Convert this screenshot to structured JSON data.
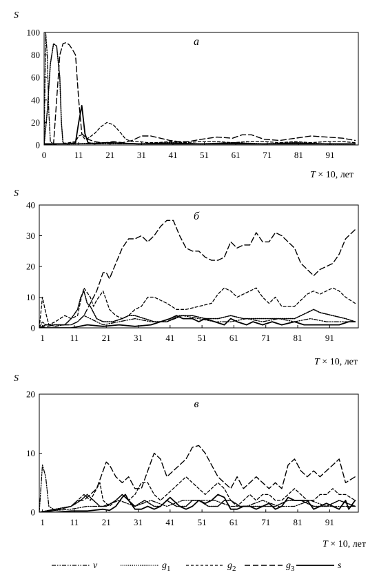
{
  "figure": {
    "legend": [
      {
        "key": "v",
        "label": "v",
        "sub": "",
        "dash": "6,2,1.5,2,1.5,2",
        "width": 1.3
      },
      {
        "key": "g1",
        "label": "g",
        "sub": "1",
        "dash": "1.2,1.6",
        "width": 1.6
      },
      {
        "key": "g2",
        "label": "g",
        "sub": "2",
        "dash": "4,3",
        "width": 1.3
      },
      {
        "key": "g3",
        "label": "g",
        "sub": "3",
        "dash": "8,4",
        "width": 1.4
      },
      {
        "key": "s",
        "label": "s",
        "sub": "",
        "dash": "",
        "width": 1.8
      }
    ]
  },
  "chart_data": [
    {
      "type": "line",
      "panel_label": "а",
      "ylabel": "S",
      "xlabel": "T × 10, лет",
      "xlim": [
        0,
        100
      ],
      "ylim": [
        0,
        100
      ],
      "yticks": [
        0,
        20,
        40,
        60,
        80,
        100
      ],
      "xticks": [
        0,
        11,
        21,
        31,
        41,
        51,
        61,
        71,
        81,
        91
      ],
      "series": [
        {
          "key": "v",
          "x": [
            0,
            0.5,
            1,
            1.5,
            2,
            3,
            5,
            10,
            20,
            40,
            60,
            80,
            99
          ],
          "y": [
            0,
            100,
            80,
            30,
            3,
            1,
            1,
            1,
            1,
            1,
            1,
            1,
            1
          ]
        },
        {
          "key": "g1",
          "x": [
            0,
            1,
            2,
            3,
            4,
            5,
            5.5,
            6,
            7,
            10,
            20,
            30,
            40,
            50,
            60,
            70,
            80,
            90,
            99
          ],
          "y": [
            0,
            30,
            72,
            90,
            88,
            60,
            20,
            2,
            1,
            1,
            2,
            1,
            2,
            1,
            2,
            1,
            2,
            1,
            1
          ]
        },
        {
          "key": "g2",
          "x": [
            0,
            5,
            8,
            10,
            11,
            12,
            13,
            14,
            16,
            18,
            20,
            22,
            24,
            26,
            28,
            30,
            33,
            36,
            40,
            45,
            50,
            55,
            60,
            65,
            70,
            75,
            80,
            85,
            90,
            95,
            99
          ],
          "y": [
            0,
            1,
            2,
            3,
            8,
            9,
            5,
            6,
            10,
            16,
            20,
            18,
            12,
            5,
            3,
            3,
            2,
            2,
            3,
            2,
            3,
            3,
            2,
            3,
            3,
            2,
            3,
            2,
            3,
            3,
            2
          ]
        },
        {
          "key": "g3",
          "x": [
            0,
            3,
            4,
            5,
            6,
            7,
            8,
            9,
            10,
            11,
            12,
            14,
            16,
            18,
            20,
            22,
            25,
            28,
            31,
            34,
            37,
            40,
            43,
            46,
            50,
            55,
            60,
            63,
            66,
            70,
            75,
            80,
            85,
            90,
            95,
            99
          ],
          "y": [
            0,
            1,
            40,
            80,
            90,
            91,
            89,
            85,
            80,
            40,
            10,
            5,
            3,
            2,
            2,
            3,
            2,
            4,
            8,
            8,
            6,
            4,
            3,
            3,
            5,
            7,
            6,
            9,
            9,
            5,
            4,
            6,
            8,
            7,
            6,
            4
          ]
        },
        {
          "key": "s",
          "x": [
            0,
            8,
            10,
            11,
            12,
            13,
            14,
            16,
            20,
            30,
            40,
            50,
            60,
            70,
            80,
            90,
            99
          ],
          "y": [
            1,
            1,
            2,
            20,
            35,
            10,
            2,
            1,
            2,
            1,
            1,
            1,
            1,
            1,
            1,
            1,
            1
          ]
        }
      ]
    },
    {
      "type": "line",
      "panel_label": "б",
      "ylabel": "S",
      "xlabel": "T × 10, лет",
      "xlim": [
        0,
        100
      ],
      "ylim": [
        0,
        40
      ],
      "yticks": [
        0,
        10,
        20,
        30,
        40
      ],
      "xticks": [
        1,
        11,
        21,
        31,
        41,
        51,
        61,
        71,
        81,
        91
      ],
      "series": [
        {
          "key": "v",
          "x": [
            0,
            1,
            2,
            3,
            5,
            8,
            10,
            12,
            14,
            16,
            18,
            20,
            25,
            30,
            35,
            40,
            45,
            50,
            55,
            60,
            65,
            70,
            75,
            80,
            85,
            90,
            95,
            99
          ],
          "y": [
            0,
            2,
            1,
            1,
            0.5,
            1,
            1,
            2,
            4,
            3,
            2,
            1,
            2,
            3,
            2,
            2,
            4,
            3,
            2,
            2,
            3,
            2,
            3,
            2,
            3,
            2,
            2,
            2
          ]
        },
        {
          "key": "g1",
          "x": [
            0,
            2,
            5,
            8,
            10,
            12,
            13,
            14,
            15,
            16,
            18,
            20,
            23,
            26,
            28,
            30,
            33,
            36,
            40,
            44,
            48,
            52,
            56,
            60,
            64,
            68,
            72,
            76,
            80,
            84,
            86,
            88,
            92,
            96,
            99
          ],
          "y": [
            0,
            1,
            1,
            1,
            3,
            6,
            10,
            12,
            8,
            7,
            3,
            2,
            2,
            3,
            4,
            4,
            3,
            2,
            2,
            4,
            4,
            3,
            3,
            4,
            3,
            3,
            3,
            3,
            3,
            5,
            6,
            5,
            4,
            3,
            2
          ]
        },
        {
          "key": "g2",
          "x": [
            0,
            1,
            2,
            3,
            5,
            8,
            10,
            12,
            13,
            14,
            16,
            17,
            18,
            20,
            22,
            24,
            26,
            28,
            30,
            32,
            34,
            36,
            38,
            40,
            43,
            46,
            50,
            54,
            56,
            58,
            60,
            62,
            64,
            66,
            68,
            70,
            72,
            74,
            76,
            78,
            80,
            82,
            84,
            86,
            88,
            90,
            92,
            94,
            96,
            99
          ],
          "y": [
            0,
            10,
            5,
            1,
            2,
            4,
            3,
            4,
            9,
            13,
            10,
            7,
            9,
            12,
            6,
            4,
            3,
            4,
            6,
            7,
            10,
            10,
            9,
            8,
            6,
            6,
            7,
            8,
            11,
            13,
            12,
            10,
            11,
            12,
            13,
            10,
            8,
            10,
            7,
            7,
            7,
            9,
            11,
            12,
            11,
            12,
            13,
            12,
            10,
            8
          ]
        },
        {
          "key": "g3",
          "x": [
            0,
            5,
            10,
            12,
            14,
            16,
            18,
            19,
            20,
            21,
            22,
            24,
            26,
            28,
            30,
            32,
            34,
            36,
            38,
            40,
            42,
            44,
            46,
            48,
            50,
            52,
            54,
            56,
            58,
            60,
            62,
            64,
            66,
            68,
            70,
            72,
            74,
            76,
            78,
            80,
            82,
            84,
            86,
            88,
            90,
            92,
            94,
            96,
            99
          ],
          "y": [
            0,
            1,
            1,
            2,
            4,
            8,
            12,
            15,
            18,
            18,
            16,
            21,
            26,
            29,
            29,
            30,
            28,
            30,
            33,
            35,
            35,
            30,
            26,
            25,
            25,
            23,
            22,
            22,
            23,
            28,
            26,
            27,
            27,
            31,
            28,
            28,
            31,
            30,
            28,
            26,
            21,
            19,
            17,
            19,
            20,
            21,
            24,
            29,
            32
          ]
        },
        {
          "key": "s",
          "x": [
            0,
            5,
            10,
            15,
            20,
            25,
            30,
            35,
            38,
            41,
            43,
            45,
            48,
            50,
            52,
            55,
            58,
            60,
            62,
            65,
            67,
            70,
            73,
            76,
            80,
            83,
            86,
            90,
            94,
            97,
            99
          ],
          "y": [
            0,
            0,
            0,
            1,
            0.5,
            1,
            0.5,
            1,
            2,
            3,
            4,
            3,
            3,
            2,
            3,
            2,
            1,
            3,
            2,
            1,
            2,
            1,
            2,
            1,
            2,
            1,
            1,
            1,
            1,
            2,
            2
          ]
        }
      ]
    },
    {
      "type": "line",
      "panel_label": "в",
      "ylabel": "S",
      "xlabel": "T × 10, лет",
      "xlim": [
        0,
        100
      ],
      "ylim": [
        0,
        20
      ],
      "yticks": [
        0,
        10,
        20
      ],
      "xticks": [
        1,
        11,
        21,
        31,
        41,
        51,
        61,
        71,
        81,
        91
      ],
      "series": [
        {
          "key": "v",
          "x": [
            0,
            1,
            2,
            3,
            5,
            10,
            15,
            20,
            25,
            30,
            35,
            40,
            45,
            50,
            55,
            60,
            65,
            70,
            75,
            80,
            85,
            90,
            95,
            99
          ],
          "y": [
            0,
            8,
            6,
            1,
            0.3,
            0.5,
            1,
            1,
            2,
            1,
            2,
            1,
            2,
            2,
            2,
            1,
            1,
            2,
            1,
            1,
            2,
            1,
            1,
            1
          ]
        },
        {
          "key": "g1",
          "x": [
            0,
            5,
            10,
            13,
            15,
            17,
            19,
            21,
            24,
            26,
            28,
            30,
            33,
            36,
            38,
            40,
            43,
            46,
            48,
            50,
            53,
            56,
            58,
            60,
            63,
            66,
            70,
            74,
            78,
            82,
            86,
            90,
            94,
            99
          ],
          "y": [
            0,
            0.5,
            1,
            2,
            3,
            2,
            1,
            1,
            2,
            3,
            2,
            1,
            2,
            1,
            1,
            2,
            1,
            1,
            2,
            2,
            1,
            1,
            2,
            2,
            1,
            1,
            1,
            1,
            2,
            2,
            1,
            1,
            2,
            1
          ]
        },
        {
          "key": "g2",
          "x": [
            0,
            5,
            10,
            12,
            14,
            16,
            18,
            19,
            20,
            22,
            24,
            26,
            28,
            30,
            32,
            34,
            36,
            38,
            40,
            42,
            44,
            46,
            48,
            50,
            52,
            54,
            56,
            58,
            60,
            62,
            64,
            66,
            68,
            70,
            72,
            74,
            76,
            78,
            80,
            82,
            84,
            86,
            88,
            90,
            92,
            94,
            96,
            99
          ],
          "y": [
            0,
            0.3,
            1,
            2,
            3,
            2,
            4,
            5,
            2,
            1,
            2,
            3,
            2,
            3,
            5,
            5,
            3,
            2,
            3,
            4,
            5,
            6,
            5,
            4,
            3,
            4,
            5,
            4,
            2,
            1,
            2,
            3,
            2,
            3,
            3,
            2,
            2,
            3,
            4,
            3,
            2,
            2,
            3,
            3,
            4,
            3,
            3,
            2
          ]
        },
        {
          "key": "g3",
          "x": [
            0,
            5,
            10,
            12,
            14,
            16,
            18,
            20,
            21,
            22,
            24,
            26,
            28,
            30,
            32,
            34,
            36,
            38,
            40,
            42,
            44,
            46,
            48,
            50,
            52,
            54,
            56,
            58,
            60,
            62,
            64,
            66,
            68,
            70,
            72,
            74,
            76,
            78,
            80,
            82,
            84,
            86,
            88,
            90,
            92,
            94,
            96,
            99
          ],
          "y": [
            0,
            0.3,
            1,
            2,
            2,
            3,
            4,
            7,
            8.5,
            8,
            6,
            5,
            6,
            4,
            4,
            7,
            10,
            9,
            6,
            7,
            8,
            9,
            11,
            11.3,
            10,
            8,
            6,
            5,
            4,
            6,
            4,
            5,
            6,
            5,
            4,
            5,
            4,
            8,
            9,
            7,
            6,
            7,
            6,
            7,
            8,
            9,
            5,
            6
          ]
        },
        {
          "key": "s",
          "x": [
            0,
            5,
            10,
            15,
            20,
            22,
            24,
            26,
            27,
            28,
            30,
            32,
            34,
            36,
            38,
            40,
            41,
            42,
            44,
            46,
            48,
            50,
            52,
            54,
            56,
            58,
            60,
            62,
            64,
            66,
            68,
            70,
            72,
            74,
            76,
            78,
            80,
            82,
            84,
            86,
            88,
            90,
            92,
            94,
            96,
            97,
            99
          ],
          "y": [
            0,
            0,
            0.2,
            0.2,
            0.5,
            0.3,
            1,
            2.5,
            3,
            2,
            0.5,
            0.5,
            1,
            0.5,
            1,
            2,
            2.5,
            2,
            1,
            0.5,
            1,
            2,
            1.5,
            2,
            3,
            2.5,
            0.5,
            0.5,
            1,
            1,
            0.5,
            1,
            1.5,
            0.5,
            1,
            2.5,
            2,
            2,
            2,
            0.5,
            1,
            1.5,
            1,
            0.5,
            2,
            0.5,
            2
          ]
        }
      ]
    }
  ]
}
